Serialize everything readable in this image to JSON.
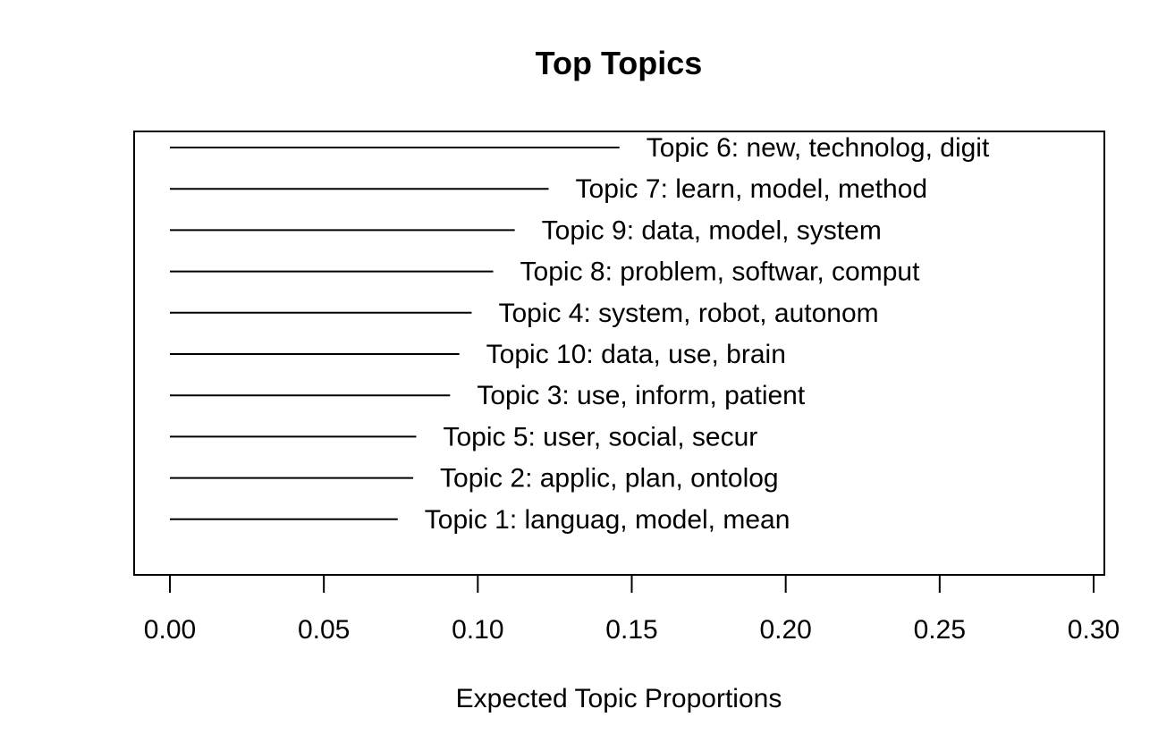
{
  "chart_data": {
    "type": "bar",
    "orientation": "horizontal",
    "title": "Top Topics",
    "xlabel": "Expected Topic Proportions",
    "ylabel": "",
    "xlim": [
      0,
      0.3
    ],
    "xticks": [
      "0.00",
      "0.05",
      "0.10",
      "0.15",
      "0.20",
      "0.25",
      "0.30"
    ],
    "grid": false,
    "categories": [
      "Topic 6: new, technolog, digit",
      "Topic 7: learn, model, method",
      "Topic 9: data, model, system",
      "Topic 8: problem, softwar, comput",
      "Topic 4: system, robot, autonom",
      "Topic 10: data, use, brain",
      "Topic 3: use, inform, patient",
      "Topic 5: user, social, secur",
      "Topic 2: applic, plan, ontolog",
      "Topic 1: languag, model, mean"
    ],
    "values": [
      0.146,
      0.123,
      0.112,
      0.105,
      0.098,
      0.094,
      0.091,
      0.08,
      0.079,
      0.074
    ]
  }
}
